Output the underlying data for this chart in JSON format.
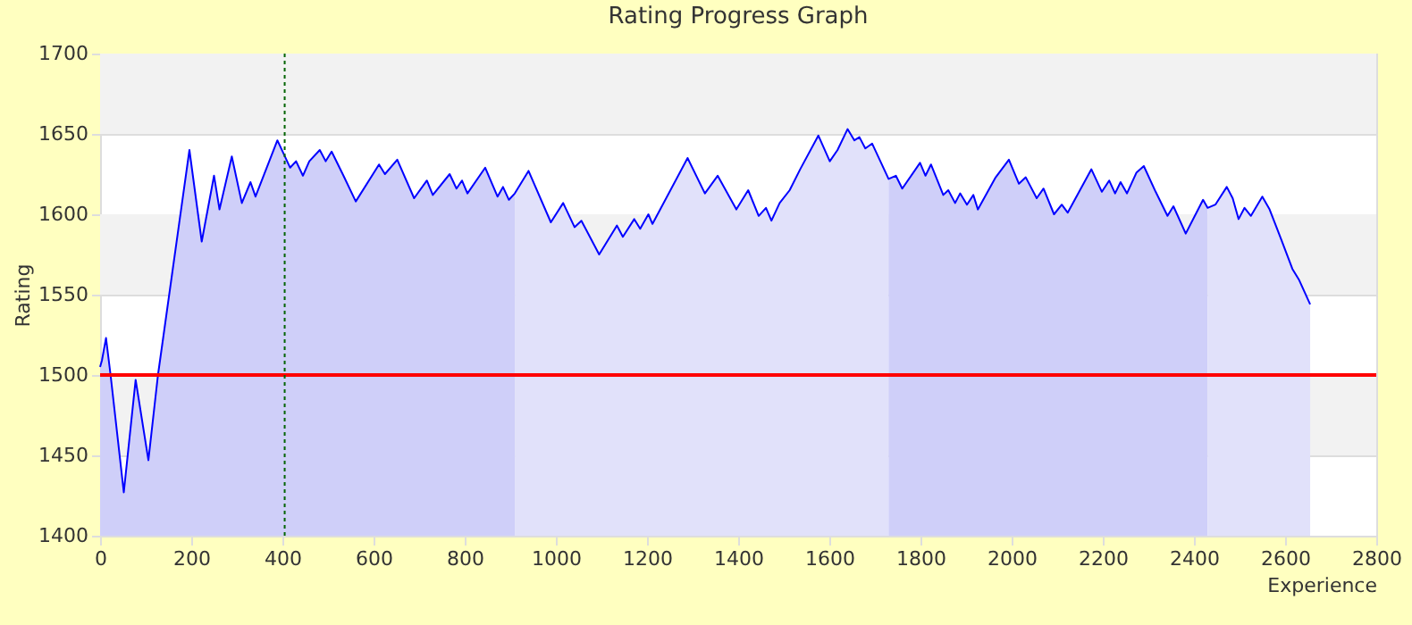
{
  "chart_data": {
    "type": "area",
    "title": "Rating Progress Graph",
    "xlabel": "Experience",
    "ylabel": "Rating",
    "xlim": [
      0,
      2800
    ],
    "xticks": [
      0,
      200,
      400,
      600,
      800,
      1000,
      1200,
      1400,
      1600,
      1800,
      2000,
      2200,
      2400,
      2600,
      2800
    ],
    "ylim": [
      1400,
      1700
    ],
    "yticks": [
      1400,
      1450,
      1500,
      1550,
      1600,
      1650,
      1700
    ],
    "grid": "y",
    "marker": "none",
    "line_style": "solid",
    "bands": [
      {
        "axis": "y",
        "from": 1650,
        "to": 1700,
        "color": "#f2f2f2"
      },
      {
        "axis": "y",
        "from": 1550,
        "to": 1600,
        "color": "#f2f2f2"
      },
      {
        "axis": "y",
        "from": 1450,
        "to": 1500,
        "color": "#f2f2f2"
      }
    ],
    "series": [
      {
        "color": "#cfcff9",
        "x": [
          0,
          4,
          13,
          23,
          52,
          78,
          106,
          127,
          196,
          223,
          250,
          262,
          289,
          311,
          330,
          341,
          389,
          417,
          430,
          445,
          459,
          482,
          495,
          508,
          534,
          561,
          612,
          625,
          652,
          689,
          717,
          730,
          767,
          782,
          794,
          806,
          845,
          872,
          884,
          897,
          910
        ],
        "values": [
          1505,
          1509,
          1523,
          1500,
          1427,
          1497,
          1447,
          1500,
          1640,
          1583,
          1624,
          1603,
          1636,
          1607,
          1620,
          1611,
          1646,
          1629,
          1633,
          1624,
          1633,
          1640,
          1633,
          1639,
          1624,
          1608,
          1631,
          1625,
          1634,
          1610,
          1621,
          1612,
          1625,
          1616,
          1621,
          1613,
          1629,
          1611,
          1617,
          1609,
          1613
        ]
      },
      {
        "color": "#e1e1fa",
        "x": [
          910,
          940,
          989,
          1016,
          1041,
          1056,
          1095,
          1134,
          1147,
          1172,
          1185,
          1203,
          1212,
          1289,
          1327,
          1355,
          1396,
          1422,
          1445,
          1461,
          1473,
          1491,
          1513,
          1536,
          1576,
          1601,
          1618,
          1640,
          1655,
          1666,
          1679,
          1694,
          1730
        ],
        "values": [
          1613,
          1627,
          1595,
          1607,
          1592,
          1596,
          1575,
          1593,
          1586,
          1597,
          1591,
          1600,
          1594,
          1635,
          1613,
          1624,
          1603,
          1615,
          1599,
          1604,
          1596,
          1607,
          1615,
          1628,
          1649,
          1633,
          1640,
          1653,
          1646,
          1648,
          1641,
          1644,
          1622
        ]
      },
      {
        "color": "#cfcff9",
        "x": [
          1730,
          1746,
          1760,
          1799,
          1811,
          1823,
          1850,
          1861,
          1876,
          1887,
          1902,
          1916,
          1926,
          1965,
          1994,
          2016,
          2031,
          2055,
          2070,
          2093,
          2110,
          2123,
          2175,
          2198,
          2214,
          2227,
          2239,
          2253,
          2274,
          2290,
          2316,
          2342,
          2355,
          2382,
          2420,
          2430
        ],
        "values": [
          1622,
          1624,
          1616,
          1632,
          1624,
          1631,
          1612,
          1615,
          1607,
          1613,
          1606,
          1612,
          1603,
          1623,
          1634,
          1619,
          1623,
          1610,
          1616,
          1600,
          1606,
          1601,
          1628,
          1614,
          1621,
          1613,
          1620,
          1613,
          1626,
          1630,
          1614,
          1599,
          1605,
          1588,
          1609,
          1604
        ]
      },
      {
        "color": "#e1e1fa",
        "x": [
          2430,
          2447,
          2472,
          2485,
          2498,
          2511,
          2525,
          2550,
          2566,
          2592,
          2616,
          2631,
          2655
        ],
        "values": [
          1604,
          1606,
          1617,
          1610,
          1597,
          1604,
          1599,
          1611,
          1603,
          1584,
          1566,
          1559,
          1544
        ]
      },
      {
        "type": "line",
        "color": "#0000ff",
        "x": [
          0,
          4,
          13,
          23,
          52,
          78,
          106,
          127,
          196,
          223,
          250,
          262,
          289,
          311,
          330,
          341,
          389,
          417,
          430,
          445,
          459,
          482,
          495,
          508,
          534,
          561,
          612,
          625,
          652,
          689,
          717,
          730,
          767,
          782,
          794,
          806,
          845,
          872,
          884,
          897,
          910,
          940,
          989,
          1016,
          1041,
          1056,
          1095,
          1134,
          1147,
          1172,
          1185,
          1203,
          1212,
          1289,
          1327,
          1355,
          1396,
          1422,
          1445,
          1461,
          1473,
          1491,
          1513,
          1536,
          1576,
          1601,
          1618,
          1640,
          1655,
          1666,
          1679,
          1694,
          1730,
          1746,
          1760,
          1799,
          1811,
          1823,
          1850,
          1861,
          1876,
          1887,
          1902,
          1916,
          1926,
          1965,
          1994,
          2016,
          2031,
          2055,
          2070,
          2093,
          2110,
          2123,
          2175,
          2198,
          2214,
          2227,
          2239,
          2253,
          2274,
          2290,
          2316,
          2342,
          2355,
          2382,
          2420,
          2430,
          2447,
          2472,
          2485,
          2498,
          2511,
          2525,
          2550,
          2566,
          2592,
          2616,
          2631,
          2655
        ],
        "values": [
          1505,
          1509,
          1523,
          1500,
          1427,
          1497,
          1447,
          1500,
          1640,
          1583,
          1624,
          1603,
          1636,
          1607,
          1620,
          1611,
          1646,
          1629,
          1633,
          1624,
          1633,
          1640,
          1633,
          1639,
          1624,
          1608,
          1631,
          1625,
          1634,
          1610,
          1621,
          1612,
          1625,
          1616,
          1621,
          1613,
          1629,
          1611,
          1617,
          1609,
          1613,
          1627,
          1595,
          1607,
          1592,
          1596,
          1575,
          1593,
          1586,
          1597,
          1591,
          1600,
          1594,
          1635,
          1613,
          1624,
          1603,
          1615,
          1599,
          1604,
          1596,
          1607,
          1615,
          1628,
          1649,
          1633,
          1640,
          1653,
          1646,
          1648,
          1641,
          1644,
          1622,
          1624,
          1616,
          1632,
          1624,
          1631,
          1612,
          1615,
          1607,
          1613,
          1606,
          1612,
          1603,
          1623,
          1634,
          1619,
          1623,
          1610,
          1616,
          1600,
          1606,
          1601,
          1628,
          1614,
          1621,
          1613,
          1620,
          1613,
          1626,
          1630,
          1614,
          1599,
          1605,
          1588,
          1609,
          1604,
          1606,
          1617,
          1610,
          1597,
          1604,
          1599,
          1611,
          1603,
          1584,
          1566,
          1559,
          1544
        ]
      }
    ],
    "ref_lines": [
      {
        "axis": "y",
        "value": 1500,
        "color": "#ff0000",
        "line_style": "solid"
      },
      {
        "axis": "x",
        "value": 405,
        "color": "#006400",
        "line_style": "dotted"
      }
    ]
  }
}
